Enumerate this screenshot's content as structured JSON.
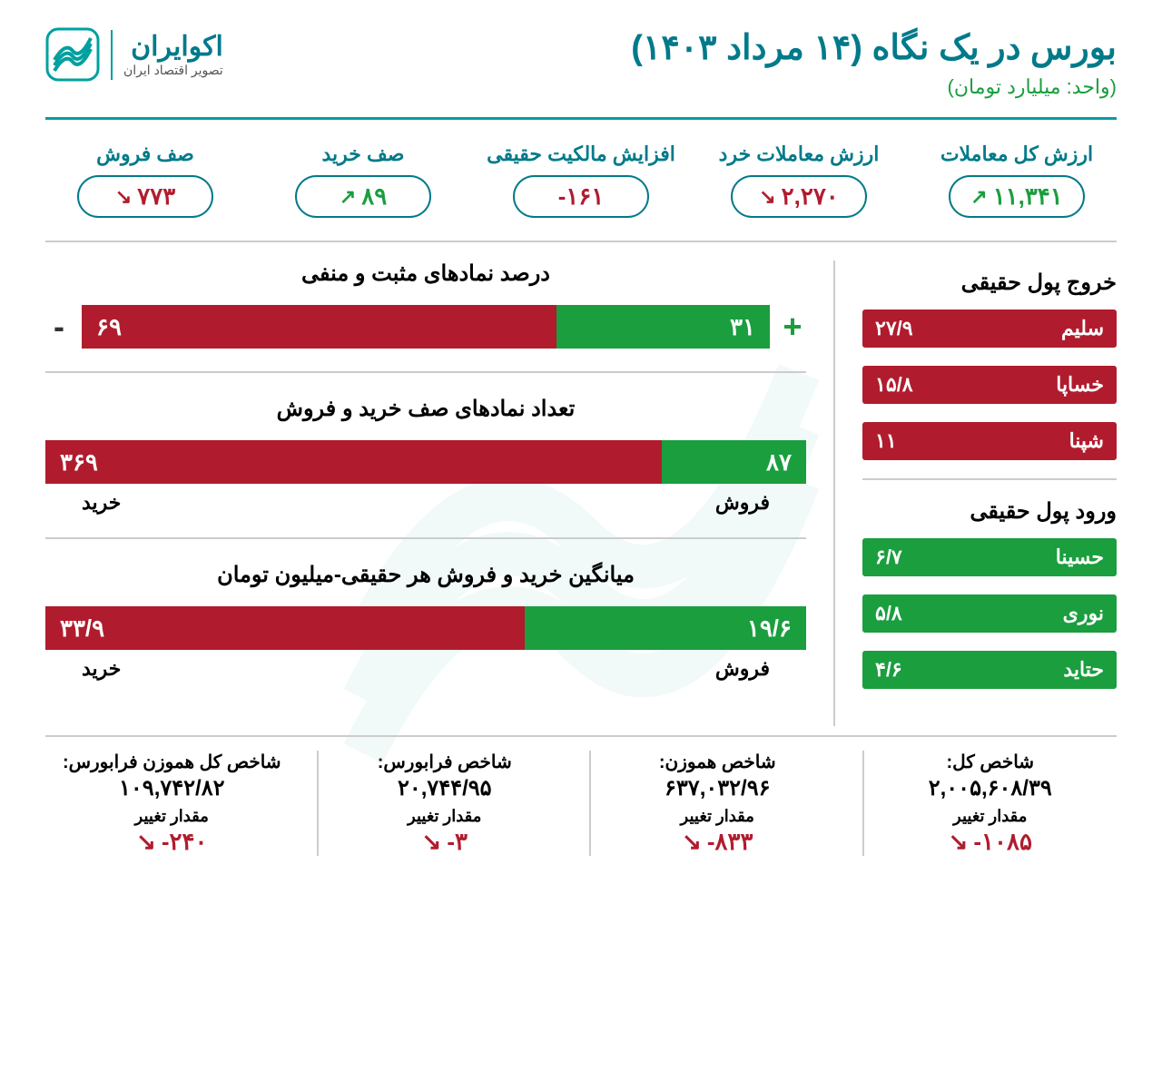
{
  "header": {
    "title": "بورس در یک نگاه (۱۴ مرداد ۱۴۰۳)",
    "subtitle": "(واحد: میلیارد تومان)",
    "logo_name": "اکوایران",
    "logo_sub": "تصویر اقتصاد ایران"
  },
  "colors": {
    "teal": "#007a8a",
    "green": "#1a9e3e",
    "red": "#b01c2e",
    "border": "#cccccc"
  },
  "metrics": [
    {
      "label": "ارزش کل معاملات",
      "value": "۱۱,۳۴۱",
      "dir": "up",
      "color": "green"
    },
    {
      "label": "ارزش معاملات خرد",
      "value": "۲,۲۷۰",
      "dir": "down",
      "color": "red"
    },
    {
      "label": "افزایش مالکیت حقیقی",
      "value": "۱۶۱-",
      "dir": "none",
      "color": "red"
    },
    {
      "label": "صف خرید",
      "value": "۸۹",
      "dir": "up",
      "color": "green"
    },
    {
      "label": "صف فروش",
      "value": "۷۷۳",
      "dir": "down",
      "color": "red"
    }
  ],
  "outflow": {
    "title": "خروج پول حقیقی",
    "items": [
      {
        "name": "سلیم",
        "value": "۲۷/۹"
      },
      {
        "name": "خساپا",
        "value": "۱۵/۸"
      },
      {
        "name": "شپنا",
        "value": "۱۱"
      }
    ]
  },
  "inflow": {
    "title": "ورود پول حقیقی",
    "items": [
      {
        "name": "حسینا",
        "value": "۶/۷"
      },
      {
        "name": "نوری",
        "value": "۵/۸"
      },
      {
        "name": "حتاید",
        "value": "۴/۶"
      }
    ]
  },
  "charts": [
    {
      "title": "درصد نمادهای مثبت و منفی",
      "show_signs": true,
      "red_value": "۶۹",
      "red_pct": 69,
      "green_value": "۳۱",
      "green_pct": 31,
      "show_labels": false
    },
    {
      "title": "تعداد نمادهای صف خرید و فروش",
      "show_signs": false,
      "red_value": "۳۶۹",
      "red_pct": 81,
      "green_value": "۸۷",
      "green_pct": 19,
      "show_labels": true,
      "left_label": "فروش",
      "right_label": "خرید"
    },
    {
      "title": "میانگین خرید و فروش هر حقیقی-میلیون تومان",
      "show_signs": false,
      "red_value": "۳۳/۹",
      "red_pct": 63,
      "green_value": "۱۹/۶",
      "green_pct": 37,
      "show_labels": true,
      "left_label": "فروش",
      "right_label": "خرید"
    }
  ],
  "footer": {
    "change_label": "مقدار تغییر",
    "items": [
      {
        "label": "شاخص کل:",
        "value": "۲,۰۰۵,۶۰۸/۳۹",
        "change": "۱۰۸۵-"
      },
      {
        "label": "شاخص هموزن:",
        "value": "۶۳۷,۰۳۲/۹۶",
        "change": "۸۳۳-"
      },
      {
        "label": "شاخص فرابورس:",
        "value": "۲۰,۷۴۴/۹۵",
        "change": "۳-"
      },
      {
        "label": "شاخص کل هموزن فرابورس:",
        "value": "۱۰۹,۷۴۲/۸۲",
        "change": "۲۴۰-"
      }
    ]
  }
}
